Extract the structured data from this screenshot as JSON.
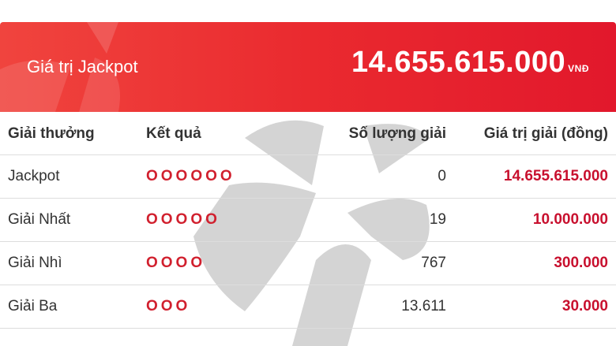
{
  "jackpot": {
    "label": "Giá trị Jackpot",
    "amount": "14.655.615.000",
    "unit": "VNĐ"
  },
  "colors": {
    "banner": "#e8222e",
    "prize": "#c8102e"
  },
  "table": {
    "headers": [
      "Giải thưởng",
      "Kết quả",
      "Số lượng giải",
      "Giá trị giải (đồng)"
    ],
    "rows": [
      {
        "name": "Jackpot",
        "result": "OOOOOO",
        "count": "0",
        "value": "14.655.615.000"
      },
      {
        "name": "Giải Nhất",
        "result": "OOOOO",
        "count": "19",
        "value": "10.000.000"
      },
      {
        "name": "Giải Nhì",
        "result": "OOOO",
        "count": "767",
        "value": "300.000"
      },
      {
        "name": "Giải Ba",
        "result": "OOO",
        "count": "13.611",
        "value": "30.000"
      }
    ]
  }
}
